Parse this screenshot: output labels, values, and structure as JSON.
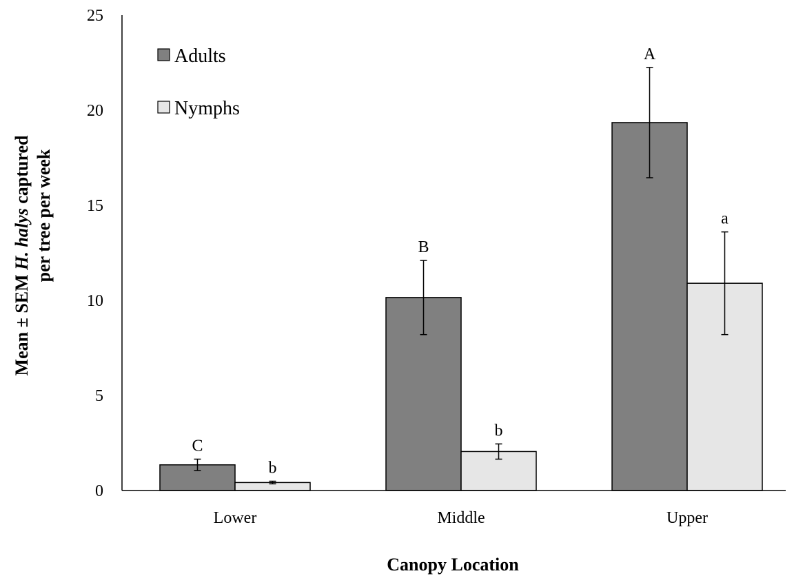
{
  "chart_data": {
    "type": "bar",
    "categories": [
      "Lower",
      "Middle",
      "Upper"
    ],
    "series": [
      {
        "name": "Adults",
        "color": "#808080",
        "values": [
          1.35,
          10.15,
          19.35
        ],
        "sem": [
          0.3,
          1.95,
          2.9
        ],
        "letters": [
          "C",
          "B",
          "A"
        ]
      },
      {
        "name": "Nymphs",
        "color": "#e6e6e6",
        "values": [
          0.42,
          2.05,
          10.9
        ],
        "sem": [
          0.07,
          0.4,
          2.7
        ],
        "letters": [
          "b",
          "b",
          "a"
        ]
      }
    ],
    "ylim": [
      0,
      25
    ],
    "yticks": [
      "0",
      "5",
      "10",
      "15",
      "20",
      "25"
    ],
    "ytick_values": [
      0,
      5,
      10,
      15,
      20,
      25
    ],
    "ylabel_line1_prefix": "Mean ± SEM ",
    "ylabel_line1_italic": "H. halys",
    "ylabel_line1_suffix": " captured",
    "ylabel_line2": "per tree per week",
    "xlabel": "Canopy Location",
    "legend_position": "top-left",
    "grid": false
  }
}
